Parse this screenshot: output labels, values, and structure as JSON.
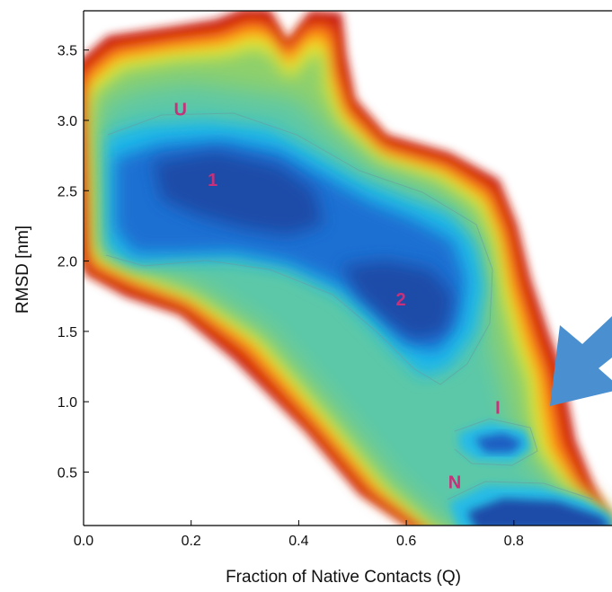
{
  "chart_data": {
    "type": "heatmap",
    "title": "",
    "xlabel": "Fraction of Native Contacts (Q)",
    "ylabel": "RMSD [nm]",
    "xlim": [
      0.0,
      0.95
    ],
    "ylim": [
      0.12,
      3.78
    ],
    "x_ticks": [
      0.0,
      0.2,
      0.4,
      0.6,
      0.8
    ],
    "x_tick_labels": [
      "0.0",
      "0.2",
      "0.4",
      "0.6",
      "0.8"
    ],
    "y_ticks": [
      0.5,
      1.0,
      1.5,
      2.0,
      2.5,
      3.0,
      3.5
    ],
    "y_tick_labels": [
      "0.5",
      "1.0",
      "1.5",
      "2.0",
      "2.5",
      "3.0",
      "3.5"
    ],
    "grid": false,
    "colormap": "jet (blue = low free energy, red = high)",
    "annotations": [
      {
        "text": "U",
        "x": 0.18,
        "y": 3.08
      },
      {
        "text": "1",
        "x": 0.24,
        "y": 2.58
      },
      {
        "text": "2",
        "x": 0.59,
        "y": 1.73
      },
      {
        "text": "I",
        "x": 0.77,
        "y": 0.96
      },
      {
        "text": "N",
        "x": 0.69,
        "y": 0.43
      }
    ],
    "arrow": {
      "color": "#4a90d0",
      "points_to": {
        "x": 0.83,
        "y": 1.0
      }
    }
  }
}
